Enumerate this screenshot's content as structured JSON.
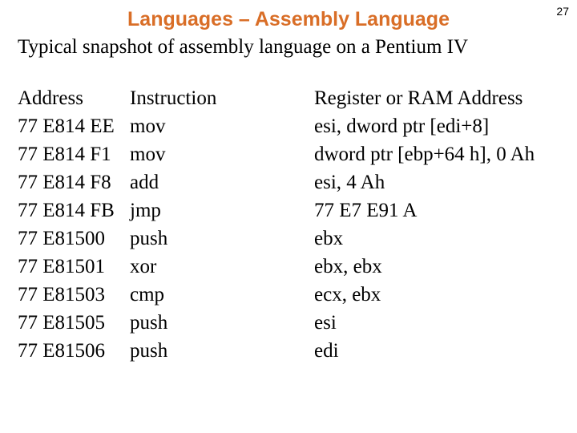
{
  "page_number": "27",
  "title": "Languages – Assembly Language",
  "subtitle": "Typical snapshot of assembly language on a Pentium IV",
  "columns": {
    "address": "Address",
    "instruction": "Instruction",
    "register": "Register or RAM Address"
  },
  "rows": [
    {
      "address": "77 E814 EE",
      "instruction": "mov",
      "register": "esi, dword ptr [edi+8]"
    },
    {
      "address": "77 E814 F1",
      "instruction": "mov",
      "register": "dword ptr [ebp+64 h], 0 Ah"
    },
    {
      "address": "77 E814 F8",
      "instruction": "add",
      "register": "esi, 4 Ah"
    },
    {
      "address": "77 E814 FB",
      "instruction": "jmp",
      "register": "77 E7 E91 A"
    },
    {
      "address": "77 E81500",
      "instruction": "push",
      "register": "ebx"
    },
    {
      "address": "77 E81501",
      "instruction": "xor",
      "register": "ebx, ebx"
    },
    {
      "address": "77 E81503",
      "instruction": "cmp",
      "register": "ecx, ebx"
    },
    {
      "address": "77 E81505",
      "instruction": "push",
      "register": "esi"
    },
    {
      "address": "77 E81506",
      "instruction": "push",
      "register": "edi"
    }
  ],
  "styling": {
    "title_color": "#d96e27",
    "text_color": "#000000",
    "background_color": "#ffffff",
    "title_fontsize": 25,
    "body_fontsize": 25,
    "title_font": "Arial",
    "body_font": "Times New Roman"
  }
}
